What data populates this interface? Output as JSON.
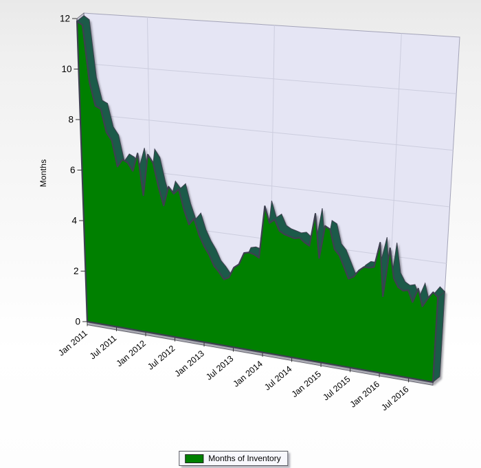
{
  "y_axis_title": "Months",
  "legend": {
    "label": "Months of Inventory",
    "swatch_color": "#008000"
  },
  "chart_data": {
    "type": "area",
    "projection": "3d-perspective",
    "title": "",
    "xlabel": "",
    "ylabel": "Months",
    "ylim": [
      0,
      12
    ],
    "grid": true,
    "legend_position": "bottom-center",
    "y_ticks": [
      0,
      2,
      4,
      6,
      8,
      10,
      12
    ],
    "y_gridline_values": [
      2,
      4,
      6,
      8,
      10
    ],
    "x_tick_labels": [
      "Jan 2011",
      "Jul 2011",
      "Jan 2012",
      "Jul 2012",
      "Jan 2013",
      "Jul 2013",
      "Jan 2014",
      "Jul 2014",
      "Jan 2015",
      "Jul 2015",
      "Jan 2016",
      "Jul 2016"
    ],
    "x_tick_month_indexes": [
      0,
      6,
      12,
      18,
      24,
      30,
      36,
      42,
      48,
      54,
      60,
      66
    ],
    "x_gridline_month_indexes": [
      12,
      36,
      60
    ],
    "x": [
      "Jan 2011",
      "Feb 2011",
      "Mar 2011",
      "Apr 2011",
      "May 2011",
      "Jun 2011",
      "Jul 2011",
      "Aug 2011",
      "Sep 2011",
      "Oct 2011",
      "Nov 2011",
      "Dec 2011",
      "Jan 2012",
      "Feb 2012",
      "Mar 2012",
      "Apr 2012",
      "May 2012",
      "Jun 2012",
      "Jul 2012",
      "Aug 2012",
      "Sep 2012",
      "Oct 2012",
      "Nov 2012",
      "Dec 2012",
      "Jan 2013",
      "Feb 2013",
      "Mar 2013",
      "Apr 2013",
      "May 2013",
      "Jun 2013",
      "Jul 2013",
      "Aug 2013",
      "Sep 2013",
      "Oct 2013",
      "Nov 2013",
      "Dec 2013",
      "Jan 2014",
      "Feb 2014",
      "Mar 2014",
      "Apr 2014",
      "May 2014",
      "Jun 2014",
      "Jul 2014",
      "Aug 2014",
      "Sep 2014",
      "Oct 2014",
      "Nov 2014",
      "Dec 2014",
      "Jan 2015",
      "Feb 2015",
      "Mar 2015",
      "Apr 2015",
      "May 2015",
      "Jun 2015",
      "Jul 2015",
      "Aug 2015",
      "Sep 2015",
      "Oct 2015",
      "Nov 2015",
      "Dec 2015",
      "Jan 2016",
      "Feb 2016",
      "Mar 2016",
      "Apr 2016",
      "May 2016",
      "Jun 2016",
      "Jul 2016",
      "Aug 2016",
      "Sep 2016",
      "Oct 2016",
      "Nov 2016",
      "Dec 2016"
    ],
    "series": [
      {
        "name": "Months of Inventory",
        "values": [
          11.9,
          11.75,
          9.5,
          8.6,
          8.5,
          7.6,
          7.3,
          6.3,
          6.6,
          6.5,
          6.2,
          6.9,
          5.3,
          6.9,
          6.6,
          5.7,
          5.0,
          5.75,
          5.5,
          5.7,
          4.95,
          4.4,
          4.65,
          4.05,
          3.65,
          3.35,
          2.95,
          2.75,
          2.5,
          2.6,
          3.0,
          3.15,
          3.6,
          3.65,
          3.6,
          3.5,
          5.45,
          4.85,
          5.0,
          4.6,
          4.5,
          4.45,
          4.4,
          4.45,
          4.3,
          4.2,
          5.4,
          3.8,
          5.0,
          4.9,
          4.2,
          4.0,
          3.6,
          3.2,
          3.3,
          3.55,
          3.7,
          3.7,
          3.75,
          4.65,
          2.75,
          4.5,
          3.45,
          3.15,
          3.05,
          3.1,
          2.7,
          3.2,
          2.6,
          2.9,
          3.15,
          3.0
        ]
      }
    ],
    "colors": {
      "area_fill": "#008000",
      "area_outline": "#3e4150",
      "side_face": "#1e5a49",
      "wall": "#e5e5f4",
      "wall_border": "#a3a3b8",
      "gridline": "#cccdde",
      "axis": "#3c3f4e",
      "tick": "#333333",
      "slab": "#c6c6d4",
      "base_strip": "#e9e9f2",
      "label": "#000000"
    }
  }
}
